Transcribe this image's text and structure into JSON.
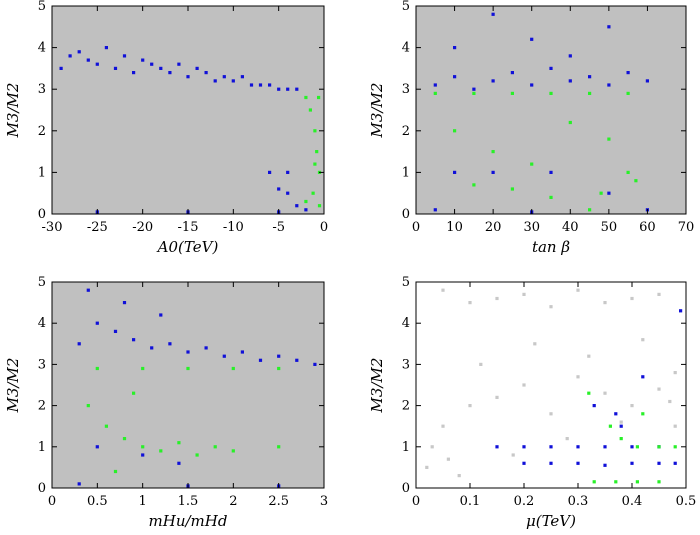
{
  "colors": {
    "background": "#c0c0c0",
    "grey_points": "#c8c8c8",
    "blue_points": "#1010d8",
    "green_points": "#28f028",
    "frame": "#000000"
  },
  "chart_data": [
    {
      "type": "scatter",
      "title": "",
      "xlabel": "A0(TeV)",
      "ylabel": "M3/M2",
      "xlim": [
        -30,
        0
      ],
      "ylim": [
        0,
        5
      ],
      "xticks": [
        "-30",
        "-25",
        "-20",
        "-15",
        "-10",
        "-5",
        "0"
      ],
      "yticks": [
        "0",
        "1",
        "2",
        "3",
        "4",
        "5"
      ],
      "grey_fill": true,
      "series": [
        {
          "name": "grey",
          "points": []
        },
        {
          "name": "blue",
          "points": [
            [
              -29,
              3.5
            ],
            [
              -28,
              3.8
            ],
            [
              -27,
              3.9
            ],
            [
              -26,
              3.7
            ],
            [
              -25,
              3.6
            ],
            [
              -24,
              4.0
            ],
            [
              -23,
              3.5
            ],
            [
              -22,
              3.8
            ],
            [
              -21,
              3.4
            ],
            [
              -20,
              3.7
            ],
            [
              -19,
              3.6
            ],
            [
              -18,
              3.5
            ],
            [
              -17,
              3.4
            ],
            [
              -16,
              3.6
            ],
            [
              -15,
              3.3
            ],
            [
              -14,
              3.5
            ],
            [
              -13,
              3.4
            ],
            [
              -12,
              3.2
            ],
            [
              -11,
              3.3
            ],
            [
              -10,
              3.2
            ],
            [
              -9,
              3.3
            ],
            [
              -8,
              3.1
            ],
            [
              -7,
              3.1
            ],
            [
              -6,
              3.1
            ],
            [
              -5,
              3.0
            ],
            [
              -4,
              3.0
            ],
            [
              -3,
              3.0
            ],
            [
              -6,
              1.0
            ],
            [
              -4,
              1.0
            ],
            [
              -5,
              0.6
            ],
            [
              -4,
              0.5
            ],
            [
              -3,
              0.2
            ],
            [
              -2,
              0.1
            ],
            [
              -25,
              0.05
            ],
            [
              -15,
              0.05
            ],
            [
              -5,
              0.05
            ]
          ]
        },
        {
          "name": "green",
          "points": [
            [
              -2,
              2.8
            ],
            [
              -1.5,
              2.5
            ],
            [
              -1,
              2.0
            ],
            [
              -0.8,
              1.5
            ],
            [
              -0.5,
              1.0
            ],
            [
              -1.2,
              0.5
            ],
            [
              -2,
              0.3
            ],
            [
              -0.5,
              0.2
            ],
            [
              -1,
              1.2
            ],
            [
              -0.6,
              2.8
            ]
          ]
        }
      ]
    },
    {
      "type": "scatter",
      "title": "",
      "xlabel": "tan β",
      "ylabel": "M3/M2",
      "xlim": [
        0,
        70
      ],
      "ylim": [
        0,
        5
      ],
      "xticks": [
        "0",
        "10",
        "20",
        "30",
        "40",
        "50",
        "60",
        "70"
      ],
      "yticks": [
        "0",
        "1",
        "2",
        "3",
        "4",
        "5"
      ],
      "grey_fill": true,
      "series": [
        {
          "name": "grey",
          "points": []
        },
        {
          "name": "blue",
          "points": [
            [
              5,
              3.1
            ],
            [
              10,
              3.3
            ],
            [
              15,
              3.0
            ],
            [
              20,
              3.2
            ],
            [
              25,
              3.4
            ],
            [
              30,
              3.1
            ],
            [
              35,
              3.5
            ],
            [
              40,
              3.2
            ],
            [
              45,
              3.3
            ],
            [
              50,
              3.1
            ],
            [
              55,
              3.4
            ],
            [
              60,
              3.2
            ],
            [
              10,
              4.0
            ],
            [
              30,
              4.2
            ],
            [
              50,
              4.5
            ],
            [
              20,
              4.8
            ],
            [
              40,
              3.8
            ],
            [
              10,
              1.0
            ],
            [
              20,
              1.0
            ],
            [
              35,
              1.0
            ],
            [
              50,
              0.5
            ],
            [
              5,
              0.1
            ],
            [
              30,
              0.05
            ],
            [
              60,
              0.1
            ]
          ]
        },
        {
          "name": "green",
          "points": [
            [
              5,
              2.9
            ],
            [
              15,
              2.9
            ],
            [
              25,
              2.9
            ],
            [
              35,
              2.9
            ],
            [
              45,
              2.9
            ],
            [
              55,
              2.9
            ],
            [
              10,
              2.0
            ],
            [
              20,
              1.5
            ],
            [
              30,
              1.2
            ],
            [
              40,
              2.2
            ],
            [
              50,
              1.8
            ],
            [
              55,
              1.0
            ],
            [
              57,
              0.8
            ],
            [
              48,
              0.5
            ],
            [
              45,
              0.1
            ],
            [
              15,
              0.7
            ],
            [
              25,
              0.6
            ],
            [
              35,
              0.4
            ]
          ]
        }
      ]
    },
    {
      "type": "scatter",
      "title": "",
      "xlabel": "mHu/mHd",
      "ylabel": "M3/M2",
      "xlim": [
        0,
        3
      ],
      "ylim": [
        0,
        5
      ],
      "xticks": [
        "0",
        "0.5",
        "1",
        "1.5",
        "2",
        "2.5",
        "3"
      ],
      "yticks": [
        "0",
        "1",
        "2",
        "3",
        "4",
        "5"
      ],
      "grey_fill": true,
      "series": [
        {
          "name": "grey",
          "points": []
        },
        {
          "name": "blue",
          "points": [
            [
              0.3,
              3.5
            ],
            [
              0.5,
              4.0
            ],
            [
              0.7,
              3.8
            ],
            [
              0.9,
              3.6
            ],
            [
              1.1,
              3.4
            ],
            [
              1.3,
              3.5
            ],
            [
              1.5,
              3.3
            ],
            [
              1.7,
              3.4
            ],
            [
              1.9,
              3.2
            ],
            [
              2.1,
              3.3
            ],
            [
              2.3,
              3.1
            ],
            [
              2.5,
              3.2
            ],
            [
              2.7,
              3.1
            ],
            [
              2.9,
              3.0
            ],
            [
              0.4,
              4.8
            ],
            [
              0.8,
              4.5
            ],
            [
              1.2,
              4.2
            ],
            [
              0.5,
              1.0
            ],
            [
              1.0,
              0.8
            ],
            [
              1.4,
              0.6
            ],
            [
              0.3,
              0.1
            ],
            [
              1.5,
              0.05
            ],
            [
              2.5,
              0.05
            ]
          ]
        },
        {
          "name": "green",
          "points": [
            [
              0.5,
              2.9
            ],
            [
              1.0,
              2.9
            ],
            [
              1.5,
              2.9
            ],
            [
              2.0,
              2.9
            ],
            [
              2.5,
              2.9
            ],
            [
              0.4,
              2.0
            ],
            [
              0.6,
              1.5
            ],
            [
              0.8,
              1.2
            ],
            [
              1.0,
              1.0
            ],
            [
              1.2,
              0.9
            ],
            [
              1.4,
              1.1
            ],
            [
              1.6,
              0.8
            ],
            [
              1.8,
              1.0
            ],
            [
              2.0,
              0.9
            ],
            [
              2.5,
              1.0
            ],
            [
              0.9,
              2.3
            ],
            [
              0.7,
              0.4
            ]
          ]
        }
      ]
    },
    {
      "type": "scatter",
      "title": "",
      "xlabel": "μ(TeV)",
      "ylabel": "M3/M2",
      "xlim": [
        0,
        0.5
      ],
      "ylim": [
        0,
        5
      ],
      "xticks": [
        "0",
        "0.1",
        "0.2",
        "0.3",
        "0.4",
        "0.5"
      ],
      "yticks": [
        "0",
        "1",
        "2",
        "3",
        "4",
        "5"
      ],
      "grey_fill": false,
      "series": [
        {
          "name": "grey",
          "points": [
            [
              0.05,
              4.8
            ],
            [
              0.1,
              4.5
            ],
            [
              0.15,
              4.6
            ],
            [
              0.2,
              4.7
            ],
            [
              0.25,
              4.4
            ],
            [
              0.3,
              4.8
            ],
            [
              0.35,
              4.5
            ],
            [
              0.4,
              4.6
            ],
            [
              0.45,
              4.7
            ],
            [
              0.12,
              3.0
            ],
            [
              0.22,
              3.5
            ],
            [
              0.32,
              3.2
            ],
            [
              0.42,
              3.6
            ],
            [
              0.48,
              2.8
            ],
            [
              0.02,
              0.5
            ],
            [
              0.05,
              1.5
            ],
            [
              0.1,
              2.0
            ],
            [
              0.15,
              2.2
            ],
            [
              0.2,
              2.5
            ],
            [
              0.25,
              1.8
            ],
            [
              0.3,
              2.7
            ],
            [
              0.35,
              2.3
            ],
            [
              0.4,
              2.0
            ],
            [
              0.45,
              2.4
            ],
            [
              0.48,
              1.5
            ],
            [
              0.08,
              0.3
            ],
            [
              0.18,
              0.8
            ],
            [
              0.28,
              1.2
            ],
            [
              0.38,
              1.6
            ],
            [
              0.47,
              2.1
            ],
            [
              0.03,
              1.0
            ],
            [
              0.06,
              0.7
            ]
          ]
        },
        {
          "name": "blue",
          "points": [
            [
              0.15,
              1.0
            ],
            [
              0.2,
              1.0
            ],
            [
              0.25,
              1.0
            ],
            [
              0.3,
              1.0
            ],
            [
              0.35,
              1.0
            ],
            [
              0.4,
              1.0
            ],
            [
              0.45,
              1.0
            ],
            [
              0.2,
              0.6
            ],
            [
              0.25,
              0.6
            ],
            [
              0.3,
              0.6
            ],
            [
              0.35,
              0.55
            ],
            [
              0.4,
              0.6
            ],
            [
              0.45,
              0.6
            ],
            [
              0.48,
              0.6
            ],
            [
              0.33,
              2.0
            ],
            [
              0.37,
              1.8
            ],
            [
              0.42,
              2.7
            ],
            [
              0.49,
              4.3
            ],
            [
              0.38,
              1.5
            ]
          ]
        },
        {
          "name": "green",
          "points": [
            [
              0.32,
              2.3
            ],
            [
              0.36,
              1.5
            ],
            [
              0.38,
              1.2
            ],
            [
              0.41,
              1.0
            ],
            [
              0.45,
              1.0
            ],
            [
              0.48,
              1.0
            ],
            [
              0.33,
              0.15
            ],
            [
              0.37,
              0.15
            ],
            [
              0.41,
              0.15
            ],
            [
              0.45,
              0.15
            ],
            [
              0.42,
              1.8
            ]
          ]
        }
      ]
    }
  ]
}
